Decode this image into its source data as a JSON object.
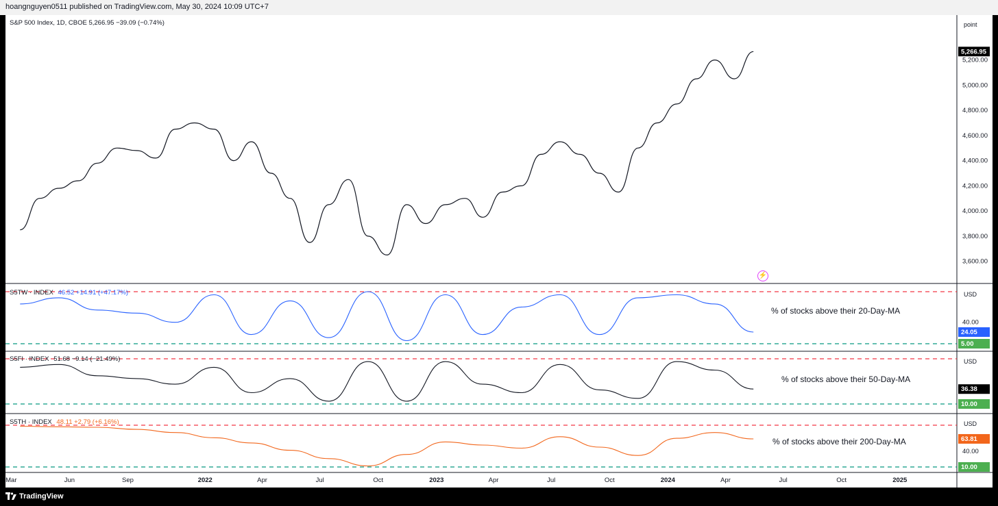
{
  "header": {
    "published": "hoangnguyen0511 published on TradingView.com, May 30, 2024 10:09 UTC+7"
  },
  "footer": {
    "brand": "TradingView"
  },
  "colors": {
    "price": "#131722",
    "s5tw": "#2962ff",
    "s5fi": "#131722",
    "s5th": "#f2661b",
    "upper_line": "#f23645",
    "lower_line": "#089981",
    "label_bg_dark": "#000000",
    "label_green": "#4caf50"
  },
  "x_axis": {
    "labels": [
      "Mar",
      "Jun",
      "Sep",
      "2022",
      "Apr",
      "Jul",
      "Oct",
      "2023",
      "Apr",
      "Jul",
      "Oct",
      "2024",
      "Apr",
      "Jul",
      "Oct",
      "2025"
    ]
  },
  "panes": {
    "main": {
      "legend": "S&P 500 Index, 1D, CBOE  5,266.95  −39.09 (−0.74%)",
      "unit": "point",
      "last_label": "5,266.95",
      "ticks": [
        "5,200.00",
        "5,000.00",
        "4,800.00",
        "4,600.00",
        "4,400.00",
        "4,200.00",
        "4,000.00",
        "3,800.00",
        "3,600.00"
      ]
    },
    "s5tw": {
      "legend_name": "S5TW · INDEX",
      "legend_vals": "46.52  +14.91 (+47.17%)",
      "unit": "USD",
      "tick": "40.00",
      "last_label": "24.05",
      "lower_label": "5.00",
      "annotation": "% of stocks above their 20-Day-MA"
    },
    "s5fi": {
      "legend_name": "S5FI · INDEX",
      "legend_vals": "51.68  −9.14 (−21.49%)",
      "unit": "USD",
      "last_label": "36.38",
      "lower_label": "10.00",
      "annotation": "% of stocks above their 50-Day-MA"
    },
    "s5th": {
      "legend_name": "S5TH · INDEX",
      "legend_vals": "48.11  +2.79 (+6.16%)",
      "unit": "USD",
      "tick": "40.00",
      "last_label": "63.81",
      "lower_label": "10.00",
      "annotation": "% of stocks above their 200-Day-MA"
    }
  },
  "chart_data": [
    {
      "type": "line",
      "title": "S&P 500 Index, 1D, CBOE",
      "x": [
        "2021-03",
        "2021-04",
        "2021-05",
        "2021-06",
        "2021-07",
        "2021-08",
        "2021-09",
        "2021-10",
        "2021-11",
        "2021-12",
        "2022-01",
        "2022-02",
        "2022-03",
        "2022-04",
        "2022-05",
        "2022-06",
        "2022-07",
        "2022-08",
        "2022-09",
        "2022-10",
        "2022-11",
        "2022-12",
        "2023-01",
        "2023-02",
        "2023-03",
        "2023-04",
        "2023-05",
        "2023-06",
        "2023-07",
        "2023-08",
        "2023-09",
        "2023-10",
        "2023-11",
        "2023-12",
        "2024-01",
        "2024-02",
        "2024-03",
        "2024-04",
        "2024-05"
      ],
      "series": [
        {
          "values": [
            3850,
            4100,
            4180,
            4240,
            4380,
            4500,
            4480,
            4420,
            4650,
            4700,
            4650,
            4400,
            4550,
            4300,
            4100,
            3750,
            4050,
            4250,
            3800,
            3650,
            4050,
            3900,
            4050,
            4100,
            3950,
            4150,
            4200,
            4450,
            4550,
            4450,
            4300,
            4150,
            4500,
            4700,
            4850,
            5050,
            5200,
            5050,
            5266.95
          ]
        }
      ],
      "ylim": [
        3500,
        5350
      ]
    },
    {
      "type": "line",
      "title": "S5TW · INDEX",
      "x": [
        "2021-03",
        "2021-05",
        "2021-07",
        "2021-09",
        "2021-11",
        "2022-01",
        "2022-03",
        "2022-05",
        "2022-07",
        "2022-09",
        "2022-11",
        "2023-01",
        "2023-03",
        "2023-05",
        "2023-07",
        "2023-09",
        "2023-11",
        "2024-01",
        "2024-03",
        "2024-05"
      ],
      "series": [
        {
          "name": "S5TW",
          "values": [
            70,
            80,
            60,
            55,
            40,
            85,
            20,
            75,
            15,
            90,
            10,
            85,
            20,
            65,
            85,
            20,
            80,
            85,
            70,
            24.05
          ]
        }
      ],
      "ylim": [
        0,
        100
      ],
      "reference_lines": [
        90,
        5
      ]
    },
    {
      "type": "line",
      "title": "S5FI · INDEX",
      "x": [
        "2021-03",
        "2021-05",
        "2021-07",
        "2021-09",
        "2021-11",
        "2022-01",
        "2022-03",
        "2022-05",
        "2022-07",
        "2022-09",
        "2022-11",
        "2023-01",
        "2023-03",
        "2023-05",
        "2023-07",
        "2023-09",
        "2023-11",
        "2024-01",
        "2024-03",
        "2024-05"
      ],
      "series": [
        {
          "name": "S5FI",
          "values": [
            75,
            80,
            60,
            55,
            45,
            75,
            30,
            55,
            15,
            85,
            15,
            85,
            45,
            30,
            80,
            35,
            20,
            85,
            70,
            36.38
          ]
        }
      ],
      "ylim": [
        0,
        100
      ],
      "reference_lines": [
        90,
        10
      ]
    },
    {
      "type": "line",
      "title": "S5TH · INDEX",
      "x": [
        "2021-03",
        "2021-05",
        "2021-07",
        "2021-09",
        "2021-11",
        "2022-01",
        "2022-03",
        "2022-05",
        "2022-07",
        "2022-09",
        "2022-11",
        "2023-01",
        "2023-03",
        "2023-05",
        "2023-07",
        "2023-09",
        "2023-11",
        "2024-01",
        "2024-03",
        "2024-05"
      ],
      "series": [
        {
          "name": "S5TH",
          "values": [
            88,
            87,
            86,
            82,
            76,
            66,
            56,
            42,
            26,
            12,
            34,
            58,
            52,
            46,
            68,
            48,
            32,
            65,
            76,
            63.81
          ]
        }
      ],
      "ylim": [
        0,
        100
      ],
      "reference_lines": [
        90,
        10
      ]
    }
  ]
}
